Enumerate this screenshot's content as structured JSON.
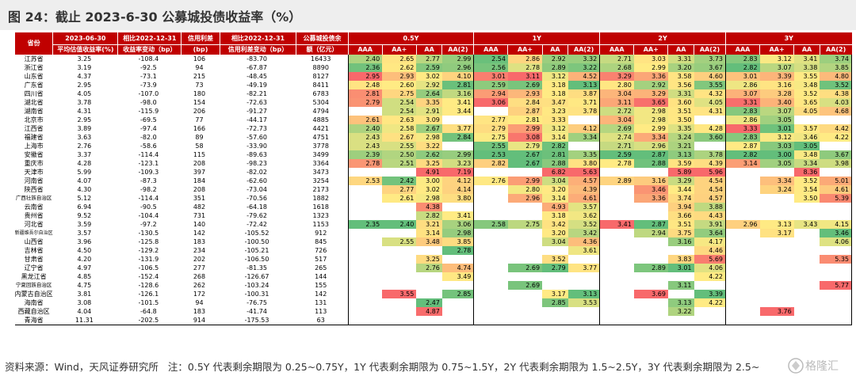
{
  "title": "图 24：截止 2023-6-30 公募城投债收益率（%）",
  "source": "资料来源：Wind，天风证券研究所",
  "note": "注：0.5Y 代表剩余期限为 0.25~0.75Y，1Y 代表剩余期限为 0.75~1.5Y，2Y 代表剩余期限为 1.5~2.5Y，3Y 代表剩余期限为 2.5~",
  "watermark": "格隆汇",
  "headers": {
    "province": "省份",
    "avg": [
      "2023-06-30",
      "平均估值收益率(%)"
    ],
    "chg_yield": [
      "相比2022-12-31",
      "收益率变动（bp）"
    ],
    "spread": [
      "信用利差",
      "(bp)"
    ],
    "chg_spread": [
      "相比2022-12-31",
      "信用利差变动（bp）"
    ],
    "balance": [
      "公募城投债余",
      "额（亿元）"
    ],
    "tenors": [
      "0.5Y",
      "1Y",
      "2Y",
      "3Y"
    ],
    "grades": [
      "AAA",
      "AA+",
      "AA",
      "AA(2)"
    ]
  },
  "colors": {
    "header_bg": "#c00000",
    "header_text": "#ffffff",
    "title_bg": "#eeeeee",
    "scale_low": "#63be7b",
    "scale_mid": "#ffeb84",
    "scale_high": "#f8696b"
  },
  "rows": [
    {
      "province": "江苏省",
      "avg": "3.25",
      "chg_yield": "-108.4",
      "spread": "106",
      "chg_spread": "-83.70",
      "balance": "16433",
      "y05": [
        "2.40",
        "2.65",
        "2.77",
        "2.99"
      ],
      "y1": [
        "2.54",
        "2.86",
        "2.92",
        "3.32"
      ],
      "y2": [
        "2.71",
        "3.03",
        "3.31",
        "3.73"
      ],
      "y3": [
        "2.83",
        "3.12",
        "3.41",
        "3.74"
      ]
    },
    {
      "province": "浙江省",
      "avg": "3.19",
      "chg_yield": "-92.5",
      "spread": "94",
      "chg_spread": "-67.87",
      "balance": "8890",
      "y05": [
        "2.36",
        "2.62",
        "2.59",
        "2.96"
      ],
      "y1": [
        "2.56",
        "2.78",
        "2.89",
        "3.22"
      ],
      "y2": [
        "2.68",
        "2.99",
        "3.20",
        "3.67"
      ],
      "y3": [
        "2.82",
        "3.07",
        "3.38",
        "3.85"
      ]
    },
    {
      "province": "山东省",
      "avg": "4.37",
      "chg_yield": "-73.1",
      "spread": "215",
      "chg_spread": "-48.45",
      "balance": "8127",
      "y05": [
        "2.95",
        "2.93",
        "3.02",
        "4.10"
      ],
      "y1": [
        "3.01",
        "3.11",
        "3.12",
        "4.52"
      ],
      "y2": [
        "3.29",
        "3.36",
        "3.58",
        "4.60"
      ],
      "y3": [
        "3.01",
        "3.39",
        "3.55",
        "4.80"
      ]
    },
    {
      "province": "广东省",
      "avg": "2.95",
      "chg_yield": "-73.9",
      "spread": "73",
      "chg_spread": "-49.19",
      "balance": "8411",
      "y05": [
        "2.48",
        "2.60",
        "2.92",
        "2.81"
      ],
      "y1": [
        "2.59",
        "2.69",
        "3.18",
        "3.13"
      ],
      "y2": [
        "2.80",
        "2.92",
        "3.56",
        "3.55"
      ],
      "y3": [
        "2.86",
        "3.16",
        "3.48",
        "3.52"
      ]
    },
    {
      "province": "四川省",
      "avg": "4.05",
      "chg_yield": "-107.0",
      "spread": "180",
      "chg_spread": "-82.21",
      "balance": "6783",
      "y05": [
        "2.81",
        "2.75",
        "2.64",
        "3.16"
      ],
      "y1": [
        "2.94",
        "2.93",
        "3.18",
        "3.87"
      ],
      "y2": [
        "3.04",
        "3.29",
        "3.31",
        "4.32"
      ],
      "y3": [
        "3.07",
        "3.28",
        "3.52",
        "4.38"
      ]
    },
    {
      "province": "湖北省",
      "avg": "3.78",
      "chg_yield": "-98.0",
      "spread": "154",
      "chg_spread": "-72.63",
      "balance": "5304",
      "y05": [
        "2.79",
        "2.54",
        "3.35",
        "3.41"
      ],
      "y1": [
        "3.06",
        "2.84",
        "3.47",
        "3.71"
      ],
      "y2": [
        "3.11",
        "3.65",
        "3.60",
        "4.05"
      ],
      "y3": [
        "3.31",
        "3.40",
        "3.65",
        "4.03"
      ]
    },
    {
      "province": "湖南省",
      "avg": "4.31",
      "chg_yield": "-115.9",
      "spread": "206",
      "chg_spread": "-91.27",
      "balance": "4794",
      "y05": [
        "",
        "2.54",
        "2.91",
        "3.44"
      ],
      "y1": [
        "",
        "2.87",
        "3.23",
        "3.78"
      ],
      "y2": [
        "2.72",
        "2.98",
        "3.51",
        "4.31"
      ],
      "y3": [
        "2.83",
        "3.07",
        "4.05",
        "4.68"
      ]
    },
    {
      "province": "北京市",
      "avg": "2.95",
      "chg_yield": "-69.5",
      "spread": "77",
      "chg_spread": "-44.17",
      "balance": "4885",
      "y05": [
        "2.61",
        "2.63",
        "3.09",
        ""
      ],
      "y1": [
        "2.77",
        "2.81",
        "3.33",
        ""
      ],
      "y2": [
        "3.04",
        "2.98",
        "3.50",
        ""
      ],
      "y3": [
        "2.86",
        "3.05",
        "",
        ""
      ]
    },
    {
      "province": "江西省",
      "avg": "3.89",
      "chg_yield": "-97.4",
      "spread": "166",
      "chg_spread": "-72.73",
      "balance": "4421",
      "y05": [
        "2.40",
        "2.58",
        "2.67",
        "3.77"
      ],
      "y1": [
        "2.79",
        "2.99",
        "3.12",
        "4.12"
      ],
      "y2": [
        "2.69",
        "2.99",
        "3.35",
        "4.28"
      ],
      "y3": [
        "3.33",
        "3.01",
        "3.57",
        "4.42"
      ]
    },
    {
      "province": "福建省",
      "avg": "3.63",
      "chg_yield": "-82.0",
      "spread": "89",
      "chg_spread": "-57.60",
      "balance": "4751",
      "y05": [
        "2.43",
        "2.67",
        "2.98",
        "2.84"
      ],
      "y1": [
        "2.75",
        "3.08",
        "3.14",
        "3.34"
      ],
      "y2": [
        "2.74",
        "3.34",
        "3.24",
        "3.60"
      ],
      "y3": [
        "2.83",
        "3.12",
        "3.46",
        "4.22"
      ]
    },
    {
      "province": "上海市",
      "avg": "2.76",
      "chg_yield": "-58.6",
      "spread": "58",
      "chg_spread": "-33.90",
      "balance": "3778",
      "y05": [
        "2.43",
        "2.55",
        "3.22",
        ""
      ],
      "y1": [
        "2.55",
        "2.79",
        "2.82",
        ""
      ],
      "y2": [
        "2.71",
        "2.96",
        "3.21",
        ""
      ],
      "y3": [
        "2.87",
        "3.03",
        "3.05",
        ""
      ]
    },
    {
      "province": "安徽省",
      "avg": "3.37",
      "chg_yield": "-114.4",
      "spread": "115",
      "chg_spread": "-89.63",
      "balance": "3499",
      "y05": [
        "2.39",
        "2.50",
        "2.62",
        "2.99"
      ],
      "y1": [
        "2.53",
        "2.67",
        "2.81",
        "3.35"
      ],
      "y2": [
        "2.59",
        "2.87",
        "3.13",
        "3.78"
      ],
      "y3": [
        "2.82",
        "3.00",
        "3.48",
        "3.67"
      ]
    },
    {
      "province": "重庆市",
      "avg": "4.28",
      "chg_yield": "-123.1",
      "spread": "208",
      "chg_spread": "-98.23",
      "balance": "3364",
      "y05": [
        "2.78",
        "2.51",
        "3.25",
        "3.23"
      ],
      "y1": [
        "2.82",
        "2.67",
        "2.88",
        "3.80"
      ],
      "y2": [
        "2.78",
        "2.88",
        "3.59",
        "4.39"
      ],
      "y3": [
        "3.14",
        "3.05",
        "3.34",
        "3.98"
      ]
    },
    {
      "province": "天津市",
      "avg": "5.99",
      "chg_yield": "-109.3",
      "spread": "397",
      "chg_spread": "-82.02",
      "balance": "3473",
      "y05": [
        "",
        "",
        "4.91",
        "7.19"
      ],
      "y1": [
        "",
        "",
        "6.82",
        "5.63"
      ],
      "y2": [
        "",
        "",
        "5.89",
        "5.96"
      ],
      "y3": [
        "",
        "",
        "8.36",
        ""
      ]
    },
    {
      "province": "河南省",
      "avg": "4.07",
      "chg_yield": "-87.3",
      "spread": "184",
      "chg_spread": "-62.60",
      "balance": "3254",
      "y05": [
        "2.53",
        "2.42",
        "3.00",
        "4.12"
      ],
      "y1": [
        "2.76",
        "2.99",
        "3.04",
        "4.57"
      ],
      "y2": [
        "2.89",
        "3.16",
        "3.29",
        "4.54"
      ],
      "y3": [
        "",
        "3.34",
        "3.52",
        "5.01"
      ]
    },
    {
      "province": "陕西省",
      "avg": "4.30",
      "chg_yield": "-98.2",
      "spread": "208",
      "chg_spread": "-73.04",
      "balance": "2173",
      "y05": [
        "",
        "2.77",
        "3.02",
        "4.14"
      ],
      "y1": [
        "",
        "2.80",
        "3.20",
        "4.39"
      ],
      "y2": [
        "",
        "3.46",
        "3.44",
        "4.54"
      ],
      "y3": [
        "",
        "3.24",
        "3.54",
        "4.61"
      ]
    },
    {
      "province": "广西壮族自治区",
      "avg": "5.12",
      "chg_yield": "-114.4",
      "spread": "351",
      "chg_spread": "-70.56",
      "balance": "1882",
      "y05": [
        "",
        "2.61",
        "2.98",
        "3.80"
      ],
      "y1": [
        "",
        "2.96",
        "3.14",
        "4.61"
      ],
      "y2": [
        "",
        "3.36",
        "3.74",
        "4.57"
      ],
      "y3": [
        "",
        "",
        "3.50",
        "5.39"
      ]
    },
    {
      "province": "云南省",
      "avg": "6.94",
      "chg_yield": "-90.5",
      "spread": "482",
      "chg_spread": "-64.18",
      "balance": "1618",
      "y05": [
        "",
        "",
        "4.38",
        ""
      ],
      "y1": [
        "",
        "",
        "4.93",
        "3.57"
      ],
      "y2": [
        "",
        "",
        "3.94",
        "3.88"
      ],
      "y3": [
        "",
        "",
        "",
        ""
      ]
    },
    {
      "province": "贵州省",
      "avg": "9.52",
      "chg_yield": "-104.4",
      "spread": "731",
      "chg_spread": "-79.62",
      "balance": "1323",
      "y05": [
        "",
        "",
        "2.82",
        "3.41"
      ],
      "y1": [
        "",
        "",
        "3.18",
        "3.62"
      ],
      "y2": [
        "",
        "",
        "3.66",
        "4.43"
      ],
      "y3": [
        "",
        "",
        "",
        ""
      ]
    },
    {
      "province": "河北省",
      "avg": "3.59",
      "chg_yield": "-97.2",
      "spread": "140",
      "chg_spread": "-72.42",
      "balance": "1153",
      "y05": [
        "2.35",
        "2.40",
        "3.21",
        "3.06"
      ],
      "y1": [
        "2.58",
        "2.75",
        "3.42",
        "3.52"
      ],
      "y2": [
        "3.41",
        "2.87",
        "3.51",
        "3.91"
      ],
      "y3": [
        "2.96",
        "3.13",
        "3.43",
        "4.15"
      ]
    },
    {
      "province": "新疆维吾尔自治区",
      "avg": "3.57",
      "chg_yield": "-130.5",
      "spread": "142",
      "chg_spread": "-105.52",
      "balance": "912",
      "y05": [
        "",
        "",
        "3.14",
        "2.98"
      ],
      "y1": [
        "",
        "",
        "3.20",
        "3.42"
      ],
      "y2": [
        "",
        "2.94",
        "3.75",
        "3.64"
      ],
      "y3": [
        "",
        "3.17",
        "",
        "3.46"
      ]
    },
    {
      "province": "山西省",
      "avg": "3.96",
      "chg_yield": "-125.8",
      "spread": "183",
      "chg_spread": "-100.50",
      "balance": "845",
      "y05": [
        "",
        "2.55",
        "3.48",
        "3.85"
      ],
      "y1": [
        "",
        "",
        "3.04",
        "4.36"
      ],
      "y2": [
        "",
        "",
        "3.16",
        "4.17"
      ],
      "y3": [
        "",
        "",
        "",
        "4.06"
      ]
    },
    {
      "province": "吉林省",
      "avg": "4.50",
      "chg_yield": "-129.2",
      "spread": "234",
      "chg_spread": "-105.21",
      "balance": "726",
      "y05": [
        "",
        "",
        "",
        "2.78"
      ],
      "y1": [
        "",
        "",
        "",
        "3.61"
      ],
      "y2": [
        "",
        "",
        "",
        "4.46"
      ],
      "y3": [
        "",
        "",
        "",
        ""
      ]
    },
    {
      "province": "甘肃省",
      "avg": "4.20",
      "chg_yield": "-131.9",
      "spread": "202",
      "chg_spread": "-106.50",
      "balance": "517",
      "y05": [
        "",
        "",
        "3.25",
        ""
      ],
      "y1": [
        "",
        "",
        "3.52",
        ""
      ],
      "y2": [
        "",
        "",
        "3.83",
        "5.69"
      ],
      "y3": [
        "",
        "",
        "",
        "5.35"
      ]
    },
    {
      "province": "辽宁省",
      "avg": "4.97",
      "chg_yield": "-106.5",
      "spread": "277",
      "chg_spread": "-81.35",
      "balance": "265",
      "y05": [
        "",
        "",
        "2.76",
        "4.74"
      ],
      "y1": [
        "",
        "2.69",
        "2.79",
        "3.77"
      ],
      "y2": [
        "",
        "2.89",
        "3.01",
        "4.06"
      ],
      "y3": [
        "",
        "",
        "",
        ""
      ]
    },
    {
      "province": "黑龙江省",
      "avg": "4.85",
      "chg_yield": "-152.4",
      "spread": "268",
      "chg_spread": "-126.67",
      "balance": "144",
      "y05": [
        "",
        "",
        "",
        "3.49"
      ],
      "y1": [
        "",
        "",
        "",
        ""
      ],
      "y2": [
        "",
        "",
        "",
        "4.22"
      ],
      "y3": [
        "",
        "",
        "",
        ""
      ]
    },
    {
      "province": "宁夏回族自治区",
      "avg": "4.75",
      "chg_yield": "-128.6",
      "spread": "262",
      "chg_spread": "-103.24",
      "balance": "155",
      "y05": [
        "",
        "",
        "",
        ""
      ],
      "y1": [
        "",
        "2.69",
        "",
        ""
      ],
      "y2": [
        "",
        "",
        "3.11",
        ""
      ],
      "y3": [
        "",
        "",
        "",
        "5.77"
      ]
    },
    {
      "province": "内蒙古自治区",
      "avg": "3.81",
      "chg_yield": "-126.1",
      "spread": "172",
      "chg_spread": "-100.31",
      "balance": "142",
      "y05": [
        "",
        "3.55",
        "",
        "2.85"
      ],
      "y1": [
        "",
        "",
        "3.17",
        "3.13"
      ],
      "y2": [
        "",
        "3.69",
        "",
        "3.39"
      ],
      "y3": [
        "",
        "",
        "",
        ""
      ]
    },
    {
      "province": "海南省",
      "avg": "3.08",
      "chg_yield": "-101.5",
      "spread": "94",
      "chg_spread": "-76.75",
      "balance": "131",
      "y05": [
        "",
        "",
        "2.47",
        ""
      ],
      "y1": [
        "",
        "",
        "2.85",
        "3.53"
      ],
      "y2": [
        "",
        "",
        "3.13",
        "4.22"
      ],
      "y3": [
        "",
        "",
        "",
        ""
      ]
    },
    {
      "province": "西藏自治区",
      "avg": "4.04",
      "chg_yield": "-64.8",
      "spread": "183",
      "chg_spread": "-41.74",
      "balance": "113",
      "y05": [
        "",
        "",
        "4.87",
        ""
      ],
      "y1": [
        "",
        "",
        "",
        ""
      ],
      "y2": [
        "",
        "",
        "3.22",
        ""
      ],
      "y3": [
        "",
        "3.76",
        "",
        ""
      ]
    },
    {
      "province": "青海省",
      "avg": "11.31",
      "chg_yield": "-202.5",
      "spread": "914",
      "chg_spread": "-175.53",
      "balance": "63",
      "y05": [
        "",
        "",
        "",
        ""
      ],
      "y1": [
        "",
        "",
        "",
        ""
      ],
      "y2": [
        "",
        "",
        "",
        ""
      ],
      "y3": [
        "",
        "",
        "",
        ""
      ]
    }
  ]
}
